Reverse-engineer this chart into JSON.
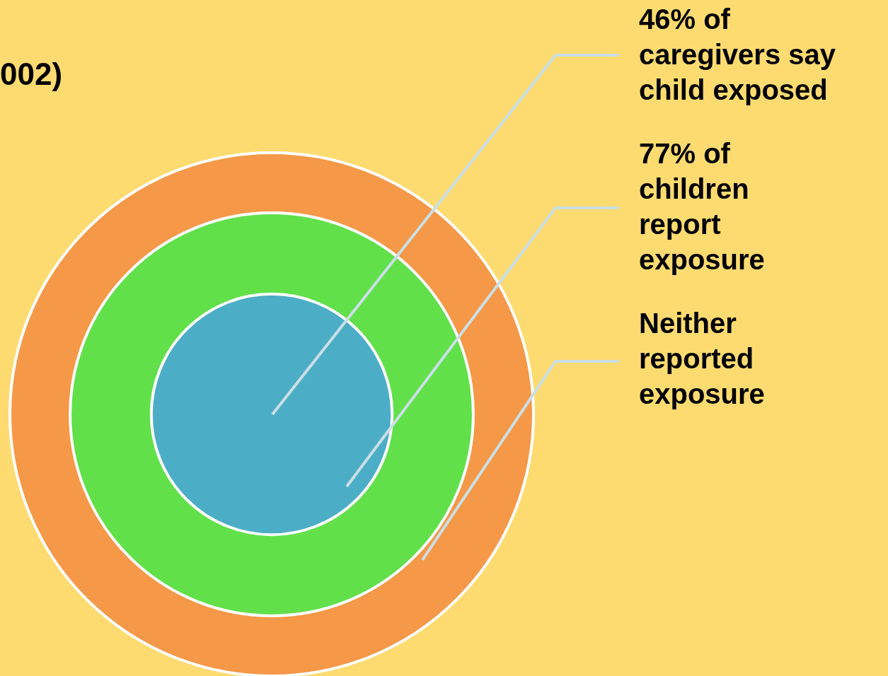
{
  "chart_data": {
    "type": "other",
    "title": "002)",
    "categories": [
      "of\ncaregivers say\nchild exposed",
      "of\nchildren\nreport\nexposure",
      "Neither\nreported\nexposure"
    ],
    "values": [
      46,
      77,
      null
    ],
    "value_labels": [
      "46%",
      "77%",
      null
    ],
    "colors": [
      "#4caec6",
      "#61e04a",
      "#f59847"
    ]
  }
}
